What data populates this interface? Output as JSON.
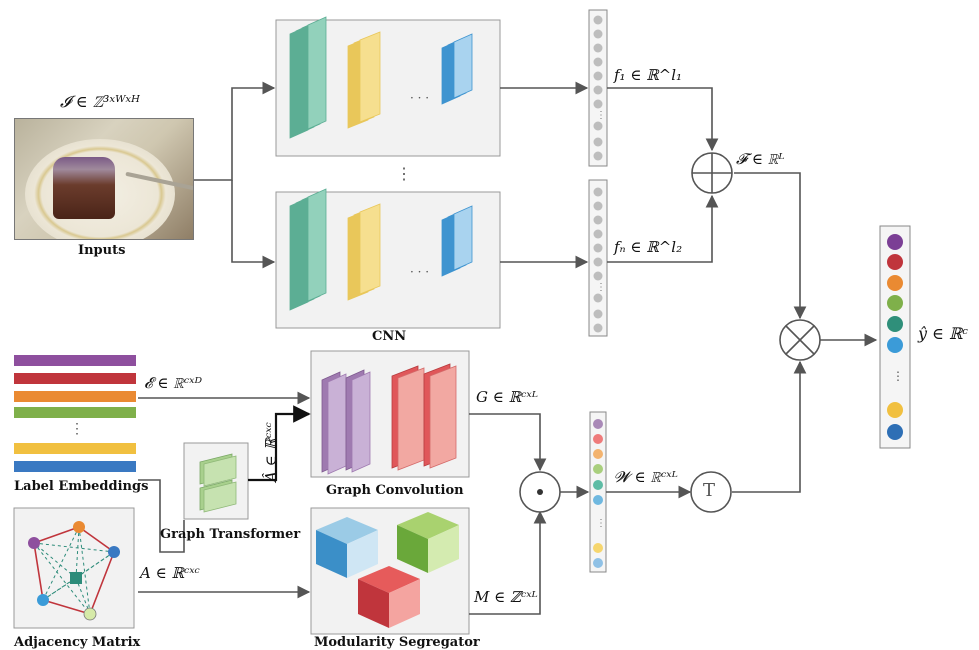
{
  "input": {
    "formula": "𝓘 ∈ ℤ³ˣᵂˣᴴ",
    "caption": "Inputs"
  },
  "cnn": {
    "caption": "CNN",
    "dots_between": "⋮",
    "dots_inner": "· · ·"
  },
  "features": {
    "f1": "f₁ ∈ ℝ^l₁",
    "fn": "fₙ ∈ ℝ^l₂",
    "F": "𝓕 ∈ ℝᴸ"
  },
  "label_embeddings": {
    "caption": "Label Embeddings",
    "formula": "𝓔 ∈ ℝᶜˣᴰ",
    "colors": [
      "#8e4f9e",
      "#c0353c",
      "#ea8a32",
      "#7fb04a",
      "#f1c040",
      "#3a79c2"
    ]
  },
  "graph_transformer": {
    "caption": "Graph Transformer",
    "formula": "Â ∈ ℝᶜˣᶜ"
  },
  "graph_convolution": {
    "caption": "Graph Convolution",
    "formula": "G ∈ ℝᶜˣᴸ"
  },
  "adjacency": {
    "caption": "Adjacency Matrix",
    "formula": "A ∈ ℝᶜˣᶜ"
  },
  "modularity": {
    "caption": "Modularity Segregator",
    "formula": "M ∈ ℤᶜˣᴸ"
  },
  "W": {
    "formula": "𝓦 ∈ ℝᶜˣᴸ"
  },
  "ops": {
    "plus": "⊕",
    "times": "⊗",
    "dot": "⊙",
    "transpose": "T"
  },
  "output": {
    "formula": "ŷ ∈ ℝᶜ",
    "colors": [
      "#7b3f95",
      "#c0353c",
      "#ea8a32",
      "#7fb04a",
      "#2f8f7a",
      "#3b9bd8",
      "#f1c040",
      "#2e6fb5"
    ]
  },
  "w_vector_colors": [
    "#a989b7",
    "#ef7b7b",
    "#f3b36e",
    "#a9cf7d",
    "#5ebca5",
    "#6fb8e0",
    "#f6d66e",
    "#8fc1e6"
  ]
}
